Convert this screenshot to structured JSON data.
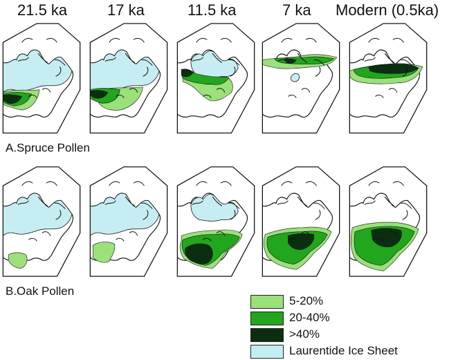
{
  "age_labels": [
    "21.5 ka",
    "17 ka",
    "11.5 ka",
    "7 ka",
    "Modern (0.5ka)"
  ],
  "rows": [
    {
      "label": "A.Spruce Pollen",
      "taxon": "spruce"
    },
    {
      "label": "B.Oak Pollen",
      "taxon": "oak"
    }
  ],
  "legend": [
    {
      "key": "low",
      "label": "5-20%"
    },
    {
      "key": "mid",
      "label": "20-40%"
    },
    {
      "key": "high",
      "label": ">40%"
    },
    {
      "key": "ice",
      "label": "Laurentide Ice Sheet"
    }
  ],
  "colors": {
    "low": "#9be07a",
    "mid": "#22a61e",
    "high": "#0c2e10",
    "ice": "#c6edf2",
    "land": "#ffffff",
    "outline": "#111111"
  },
  "map_states": {
    "spruce": [
      {
        "ice_extent": "full",
        "pollen_zones": [
          "low",
          "mid",
          "high"
        ],
        "zone_position": "south of ice, central-west"
      },
      {
        "ice_extent": "full",
        "pollen_zones": [
          "low",
          "mid",
          "high"
        ],
        "zone_position": "south of ice, broad band"
      },
      {
        "ice_extent": "retreating",
        "pollen_zones": [
          "low",
          "mid",
          "high"
        ],
        "zone_position": "ice margin to Great Lakes and New England"
      },
      {
        "ice_extent": "remnant",
        "pollen_zones": [
          "low",
          "mid",
          "high"
        ],
        "zone_position": "northern Canada band"
      },
      {
        "ice_extent": "none",
        "pollen_zones": [
          "low",
          "mid",
          "high"
        ],
        "zone_position": "boreal belt across Canada"
      }
    ],
    "oak": [
      {
        "ice_extent": "full",
        "pollen_zones": [
          "low"
        ],
        "zone_position": "southern Texas / Gulf"
      },
      {
        "ice_extent": "full",
        "pollen_zones": [
          "low"
        ],
        "zone_position": "southeast and Gulf"
      },
      {
        "ice_extent": "retreating",
        "pollen_zones": [
          "low",
          "mid",
          "high"
        ],
        "zone_position": "eastern United States"
      },
      {
        "ice_extent": "none",
        "pollen_zones": [
          "low",
          "mid",
          "high"
        ],
        "zone_position": "eastern United States and Midwest"
      },
      {
        "ice_extent": "none",
        "pollen_zones": [
          "low",
          "mid",
          "high"
        ],
        "zone_position": "eastern United States"
      }
    ]
  }
}
